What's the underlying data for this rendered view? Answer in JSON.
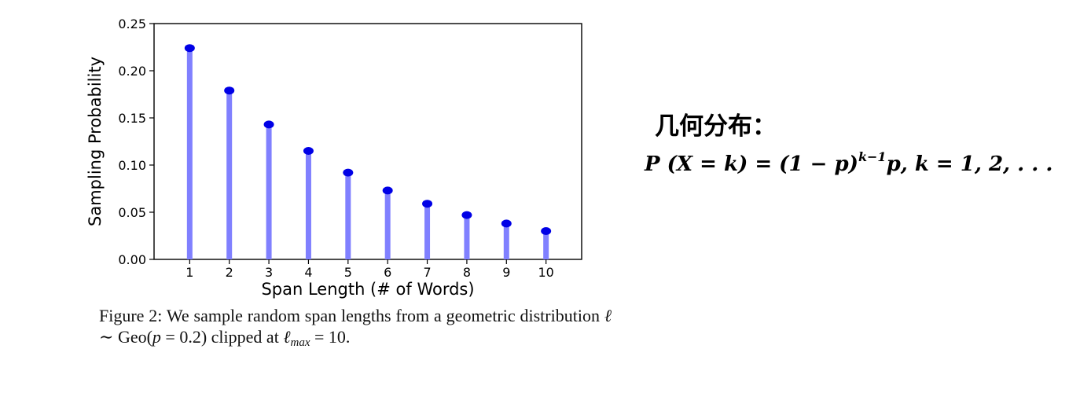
{
  "chart_data": {
    "type": "bar",
    "x": [
      1,
      2,
      3,
      4,
      5,
      6,
      7,
      8,
      9,
      10
    ],
    "values": [
      0.224,
      0.179,
      0.143,
      0.115,
      0.092,
      0.073,
      0.059,
      0.047,
      0.038,
      0.03
    ],
    "xlabel": "Span Length (# of Words)",
    "ylabel": "Sampling Probability",
    "ylim": [
      0,
      0.25
    ],
    "xlim": [
      0.1,
      10.9
    ],
    "yticks": [
      "0.00",
      "0.05",
      "0.10",
      "0.15",
      "0.20",
      "0.25"
    ],
    "xticks": [
      "1",
      "2",
      "3",
      "4",
      "5",
      "6",
      "7",
      "8",
      "9",
      "10"
    ],
    "grid": false,
    "colors": {
      "stem": "#8080ff",
      "marker": "#0000e6"
    }
  },
  "caption": {
    "label": "Figure 2:",
    "text_1": "We sample random span lengths from a geometric distribution",
    "symbol_l": "ℓ",
    "sim": "∼",
    "geo": "Geo(",
    "p_var": "p",
    "eq": "=",
    "p_value": "0.2)",
    "text_2": "clipped at",
    "lmax_sub": "max",
    "lmax_value": "= 10."
  },
  "right_panel": {
    "title": "几何分布：",
    "formula_lhs": "P (X = k) = (1 − p)",
    "formula_exp": "k−1",
    "formula_rhs": "p, k = 1, 2, . . ."
  }
}
